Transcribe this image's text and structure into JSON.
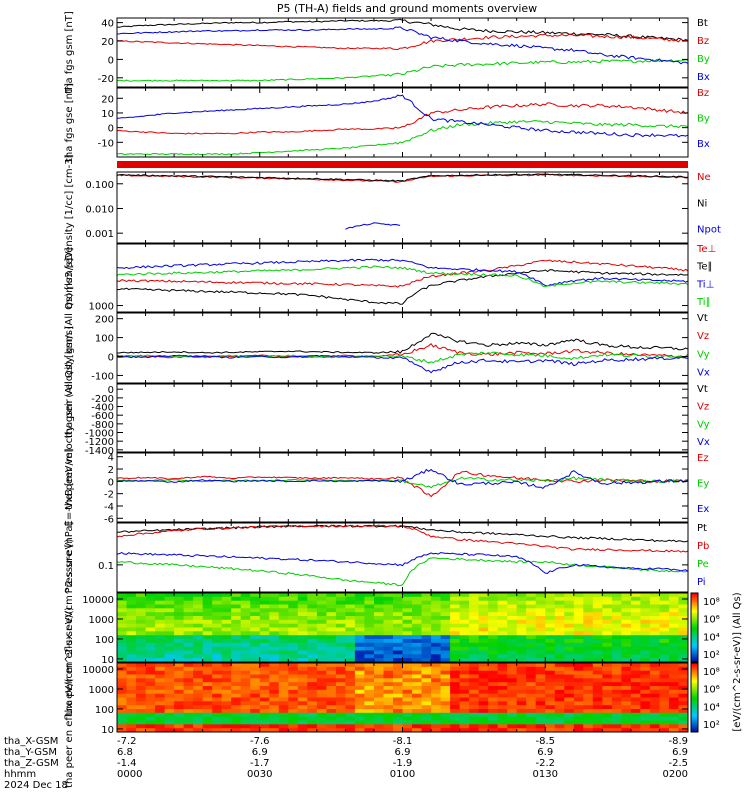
{
  "title": "P5 (TH-A) fields and ground moments overview",
  "colors": {
    "black": "#000000",
    "red": "#e00000",
    "green": "#00cc00",
    "blue": "#0000e0"
  },
  "ephemeris": {
    "row_labels": [
      "tha_X-GSM",
      "tha_Y-GSM",
      "tha_Z-GSM",
      "hhmm",
      "2024 Dec 18"
    ],
    "columns": [
      [
        "-7.2",
        "6.8",
        "-1.4",
        "0000"
      ],
      [
        "-7.6",
        "6.9",
        "-1.7",
        "0030"
      ],
      [
        "-8.1",
        "6.9",
        "-1.9",
        "0100"
      ],
      [
        "-8.5",
        "6.9",
        "-2.2",
        "0130"
      ],
      [
        "-8.9",
        "6.9",
        "-2.5",
        "0200"
      ]
    ]
  },
  "colorbar": {
    "label": "[eV/(cm^2-s-sr-eV)] (All Qs)",
    "ticks_top": [
      "10⁸",
      "10⁶",
      "10⁴",
      "10²"
    ],
    "ticks_bottom": [
      "10⁸",
      "10⁶",
      "10⁴",
      "10²"
    ]
  },
  "chart_data": [
    {
      "type": "line",
      "name": "fgs_gsm",
      "ylabel": "tha fgs gsm [nT]",
      "ylim": [
        -30,
        45
      ],
      "yticks": [
        {
          "v": 40,
          "t": "40"
        },
        {
          "v": 20,
          "t": "20"
        },
        {
          "v": 0,
          "t": "0"
        },
        {
          "v": -20,
          "t": "-20"
        }
      ],
      "series": [
        {
          "name": "Bt",
          "color": "black",
          "values": [
            35,
            37,
            38,
            39,
            40,
            40,
            41,
            41,
            42,
            42,
            42,
            38,
            33,
            31,
            30,
            29,
            28,
            27,
            25,
            23,
            21
          ]
        },
        {
          "name": "Bz",
          "color": "red",
          "values": [
            20,
            19,
            18,
            17,
            16,
            15,
            14,
            13,
            12,
            12,
            12,
            20,
            22,
            24,
            25,
            26,
            26,
            25,
            24,
            22,
            20
          ]
        },
        {
          "name": "By",
          "color": "green",
          "values": [
            -23,
            -23,
            -23,
            -23,
            -23,
            -23,
            -22,
            -21,
            -20,
            -18,
            -16,
            -8,
            -6,
            -5,
            -4,
            -3,
            -3,
            -2,
            -2,
            -1,
            -1
          ]
        },
        {
          "name": "Bx",
          "color": "blue",
          "values": [
            28,
            29,
            30,
            31,
            31,
            32,
            32,
            32,
            33,
            33,
            34,
            24,
            20,
            17,
            15,
            12,
            10,
            5,
            2,
            -1,
            -4
          ]
        }
      ]
    },
    {
      "type": "line",
      "name": "fgs_gse",
      "ylabel": "tha fgs gse [nT]",
      "ylim": [
        -20,
        27
      ],
      "yticks": [
        {
          "v": 20,
          "t": "20"
        },
        {
          "v": 10,
          "t": "10"
        },
        {
          "v": 0,
          "t": "0"
        },
        {
          "v": -10,
          "t": "-10"
        }
      ],
      "series": [
        {
          "name": "Bz",
          "color": "red",
          "values": [
            -2,
            -3,
            -4,
            -4,
            -4,
            -3,
            -3,
            -2,
            -1,
            -1,
            0,
            10,
            12,
            14,
            15,
            16,
            15,
            15,
            14,
            12,
            10
          ]
        },
        {
          "name": "By",
          "color": "green",
          "values": [
            -18,
            -18,
            -18,
            -18,
            -18,
            -17,
            -16,
            -15,
            -14,
            -12,
            -10,
            -2,
            2,
            3,
            4,
            4,
            3,
            2,
            2,
            1,
            1
          ]
        },
        {
          "name": "Bx",
          "color": "blue",
          "values": [
            6,
            8,
            10,
            11,
            12,
            13,
            14,
            15,
            16,
            18,
            22,
            6,
            4,
            2,
            0,
            -2,
            -3,
            -4,
            -5,
            -5,
            -6
          ]
        }
      ]
    },
    {
      "type": "line",
      "name": "density",
      "ylabel": "Density [1/cc] [cm-3]",
      "scale": "log",
      "ylim": [
        0.0004,
        0.3
      ],
      "yticks": [
        {
          "v": 0.1,
          "t": "0.100"
        },
        {
          "v": 0.01,
          "t": "0.010"
        },
        {
          "v": 0.001,
          "t": "0.001"
        }
      ],
      "series": [
        {
          "name": "Ne",
          "color": "red",
          "values": [
            0.22,
            0.21,
            0.2,
            0.19,
            0.18,
            0.17,
            0.16,
            0.15,
            0.14,
            0.13,
            0.12,
            0.2,
            0.21,
            0.22,
            0.22,
            0.23,
            0.22,
            0.21,
            0.2,
            0.19,
            0.18
          ]
        },
        {
          "name": "Ni",
          "color": "black",
          "values": [
            0.23,
            0.22,
            0.21,
            0.2,
            0.19,
            0.18,
            0.17,
            0.16,
            0.15,
            0.14,
            0.13,
            0.21,
            0.22,
            0.23,
            0.23,
            0.24,
            0.23,
            0.22,
            0.21,
            0.2,
            0.19
          ]
        },
        {
          "name": "Npot",
          "color": "blue",
          "values": [
            null,
            null,
            null,
            null,
            null,
            null,
            null,
            null,
            0.0015,
            0.0025,
            0.002,
            null,
            null,
            null,
            null,
            null,
            null,
            null,
            null,
            null,
            null
          ]
        }
      ]
    },
    {
      "type": "line",
      "name": "moments_temperature",
      "ylabel": "moms3 [eV]",
      "scale": "log",
      "ylim": [
        700,
        30000
      ],
      "yticks": [
        {
          "v": 1000,
          "t": "1000"
        }
      ],
      "series": [
        {
          "name": "Te⊥",
          "color": "red",
          "values": [
            4000,
            3900,
            3800,
            3700,
            3600,
            3500,
            3400,
            3300,
            3200,
            3000,
            2900,
            5000,
            6000,
            7000,
            9000,
            12000,
            11000,
            10000,
            9000,
            8000,
            7000
          ]
        },
        {
          "name": "Te∥",
          "color": "black",
          "values": [
            2500,
            2400,
            2300,
            2200,
            2100,
            2000,
            1900,
            1700,
            1400,
            1200,
            1100,
            3000,
            4000,
            5000,
            6000,
            7000,
            6500,
            6000,
            5800,
            5600,
            5500
          ]
        },
        {
          "name": "Ti⊥",
          "color": "blue",
          "values": [
            8000,
            8500,
            9000,
            9500,
            10000,
            10500,
            11000,
            11500,
            12000,
            12500,
            12000,
            8000,
            7500,
            7000,
            6500,
            3000,
            4000,
            4500,
            4200,
            4000,
            3800
          ]
        },
        {
          "name": "Ti∥",
          "color": "green",
          "values": [
            5500,
            5800,
            6000,
            6200,
            6500,
            6800,
            7000,
            7500,
            8000,
            8500,
            8000,
            6000,
            5800,
            5500,
            5200,
            2800,
            3500,
            3800,
            3600,
            3500,
            3300
          ]
        }
      ]
    },
    {
      "type": "line",
      "name": "peir_velocity",
      "ylabel": "tha peir velocity gsm (All Qs) [km/s]",
      "ylim": [
        -140,
        230
      ],
      "yticks": [
        {
          "v": 200,
          "t": "200"
        },
        {
          "v": 100,
          "t": "100"
        },
        {
          "v": 0,
          "t": "0"
        },
        {
          "v": -100,
          "t": "-100"
        }
      ],
      "series": [
        {
          "name": "Vt",
          "color": "black",
          "values": [
            20,
            22,
            25,
            20,
            22,
            25,
            28,
            25,
            22,
            20,
            25,
            120,
            80,
            60,
            70,
            60,
            90,
            60,
            50,
            45,
            40
          ]
        },
        {
          "name": "Vz",
          "color": "red",
          "values": [
            5,
            0,
            -5,
            5,
            0,
            5,
            0,
            -5,
            5,
            0,
            10,
            60,
            20,
            10,
            20,
            15,
            30,
            20,
            10,
            5,
            0
          ]
        },
        {
          "name": "Vy",
          "color": "green",
          "values": [
            0,
            5,
            0,
            -5,
            5,
            0,
            5,
            0,
            -5,
            5,
            0,
            -30,
            10,
            20,
            10,
            5,
            -10,
            10,
            5,
            0,
            5
          ]
        },
        {
          "name": "Vx",
          "color": "blue",
          "values": [
            0,
            -5,
            5,
            0,
            -5,
            0,
            -5,
            5,
            0,
            -5,
            -10,
            -80,
            -30,
            -20,
            -30,
            -20,
            -40,
            -20,
            -15,
            -10,
            -5
          ]
        }
      ]
    },
    {
      "type": "line",
      "name": "peer_velocity",
      "ylabel": "tha peer velocity gsm (All Qs) [km/s]",
      "ylim": [
        -1450,
        120
      ],
      "yticks": [
        {
          "v": 0,
          "t": "0"
        },
        {
          "v": -200,
          "t": "-200"
        },
        {
          "v": -400,
          "t": "-400"
        },
        {
          "v": -600,
          "t": "-600"
        },
        {
          "v": -800,
          "t": "-800"
        },
        {
          "v": -1000,
          "t": "-1000"
        },
        {
          "v": -1200,
          "t": "-1200"
        },
        {
          "v": -1400,
          "t": "-1400"
        }
      ],
      "series": [
        {
          "name": "Vt",
          "color": "black",
          "values": []
        },
        {
          "name": "Vz",
          "color": "red",
          "values": []
        },
        {
          "name": "Vy",
          "color": "green",
          "values": []
        },
        {
          "name": "Vx",
          "color": "blue",
          "values": []
        }
      ]
    },
    {
      "type": "line",
      "name": "e_field",
      "ylabel": "E=-VxB [mV/m]",
      "ylim": [
        -6.6,
        4.6
      ],
      "yticks": [
        {
          "v": 4,
          "t": "4"
        },
        {
          "v": 2,
          "t": "2"
        },
        {
          "v": 0,
          "t": "0"
        },
        {
          "v": -2,
          "t": "-2"
        },
        {
          "v": -4,
          "t": "-4"
        },
        {
          "v": -6,
          "t": "-6"
        }
      ],
      "series": [
        {
          "name": "Ez",
          "color": "red",
          "values": [
            0.5,
            0.6,
            0.4,
            0.8,
            0.5,
            0.7,
            0.6,
            0.5,
            0.6,
            0.4,
            0.5,
            -2.5,
            1.5,
            1.0,
            0.5,
            0.3,
            0.0,
            0.2,
            0.1,
            0.0,
            0.1
          ]
        },
        {
          "name": "Ey",
          "color": "green",
          "values": [
            0.2,
            0.1,
            0.3,
            0.0,
            0.2,
            0.1,
            0.2,
            0.3,
            0.1,
            0.2,
            0.1,
            -1.0,
            0.5,
            0.3,
            0.2,
            0.1,
            0.5,
            0.2,
            0.1,
            0.0,
            0.0
          ]
        },
        {
          "name": "Ex",
          "color": "blue",
          "values": [
            0.0,
            0.1,
            -0.1,
            0.2,
            0.0,
            0.1,
            0.0,
            0.1,
            0.0,
            0.1,
            0.0,
            2.0,
            -0.5,
            -0.3,
            -0.2,
            -1.0,
            1.5,
            -0.3,
            -0.2,
            0.0,
            0.1
          ]
        }
      ]
    },
    {
      "type": "line",
      "name": "pressure",
      "ylabel": "Pressure [nPa]",
      "scale": "log",
      "ylim": [
        0.02,
        1.2
      ],
      "yticks": [
        {
          "v": 0.1,
          "t": "0.1"
        }
      ],
      "series": [
        {
          "name": "Pt",
          "color": "black",
          "values": [
            0.7,
            0.75,
            0.8,
            0.85,
            0.9,
            0.95,
            1.0,
            1.0,
            1.0,
            1.0,
            1.0,
            0.8,
            0.7,
            0.65,
            0.6,
            0.55,
            0.5,
            0.48,
            0.45,
            0.42,
            0.4
          ]
        },
        {
          "name": "Pb",
          "color": "red",
          "values": [
            0.55,
            0.65,
            0.75,
            0.85,
            0.9,
            0.95,
            1.0,
            1.0,
            1.0,
            1.0,
            1.0,
            0.55,
            0.45,
            0.4,
            0.35,
            0.3,
            0.25,
            0.25,
            0.24,
            0.23,
            0.22
          ]
        },
        {
          "name": "Pe",
          "color": "green",
          "values": [
            0.12,
            0.11,
            0.1,
            0.09,
            0.08,
            0.07,
            0.06,
            0.05,
            0.04,
            0.035,
            0.03,
            0.15,
            0.14,
            0.13,
            0.12,
            0.12,
            0.1,
            0.09,
            0.08,
            0.07,
            0.07
          ]
        },
        {
          "name": "Pi",
          "color": "blue",
          "values": [
            0.2,
            0.19,
            0.18,
            0.17,
            0.16,
            0.15,
            0.14,
            0.13,
            0.12,
            0.11,
            0.1,
            0.2,
            0.19,
            0.18,
            0.16,
            0.06,
            0.1,
            0.09,
            0.08,
            0.08,
            0.07
          ]
        }
      ]
    },
    {
      "type": "heatmap",
      "name": "peir_eflux",
      "ylabel": "tha peir en eflux eV/(cm^2-s-sr-eV)",
      "scale": "log",
      "ylim": [
        7,
        20000
      ],
      "yticks": [
        {
          "v": 10000,
          "t": "10000"
        },
        {
          "v": 1000,
          "t": "1000"
        },
        {
          "v": 100,
          "t": "100"
        },
        {
          "v": 10,
          "t": "10"
        }
      ]
    },
    {
      "type": "heatmap",
      "name": "peer_eflux",
      "ylabel": "tha peer en eflux eV/(cm^2-s-sr-eV)",
      "scale": "log",
      "ylim": [
        7,
        20000
      ],
      "yticks": [
        {
          "v": 10000,
          "t": "10000"
        },
        {
          "v": 1000,
          "t": "1000"
        },
        {
          "v": 100,
          "t": "100"
        },
        {
          "v": 10,
          "t": "10"
        }
      ]
    }
  ]
}
